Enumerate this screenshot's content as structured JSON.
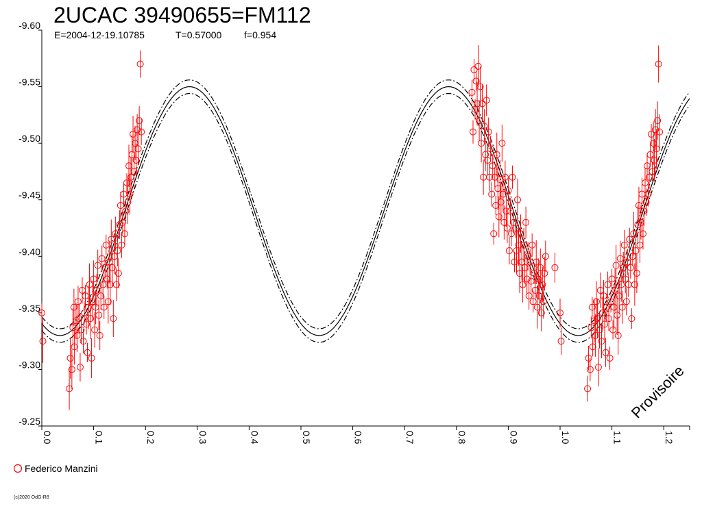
{
  "chart_data": {
    "type": "scatter",
    "title": "2UCAC 39490655=FM112",
    "subtitle": {
      "epoch": "E=2004-12-19.10785",
      "period": "T=0.57000",
      "fill": "f=0.954"
    },
    "watermark": "Provisoire",
    "credit": "(c)2020 OdG-R8",
    "xlim": [
      0.0,
      1.25
    ],
    "ylim": [
      -9.25,
      -9.6
    ],
    "x_ticks": [
      "0.0",
      "0.1",
      "0.2",
      "0.3",
      "0.4",
      "0.5",
      "0.6",
      "0.7",
      "0.8",
      "0.9",
      "1.0",
      "1.1",
      "1.2"
    ],
    "y_ticks": [
      "-9.60",
      "-9.55",
      "-9.50",
      "-9.45",
      "-9.40",
      "-9.35",
      "-9.30",
      "-9.25"
    ],
    "colors": {
      "points": "#ff0000",
      "model": "#000000"
    },
    "series": [
      {
        "name": "Federico Manzini",
        "marker": "open-circle",
        "points": [
          [
            0.0,
            -9.35
          ],
          [
            0.002,
            -9.325
          ],
          [
            0.053,
            -9.283
          ],
          [
            0.055,
            -9.31
          ],
          [
            0.058,
            -9.3
          ],
          [
            0.06,
            -9.337
          ],
          [
            0.062,
            -9.355
          ],
          [
            0.063,
            -9.32
          ],
          [
            0.066,
            -9.343
          ],
          [
            0.068,
            -9.33
          ],
          [
            0.07,
            -9.36
          ],
          [
            0.072,
            -9.345
          ],
          [
            0.074,
            -9.302
          ],
          [
            0.076,
            -9.335
          ],
          [
            0.078,
            -9.37
          ],
          [
            0.08,
            -9.325
          ],
          [
            0.082,
            -9.35
          ],
          [
            0.084,
            -9.365
          ],
          [
            0.086,
            -9.34
          ],
          [
            0.088,
            -9.315
          ],
          [
            0.09,
            -9.355
          ],
          [
            0.092,
            -9.375
          ],
          [
            0.094,
            -9.345
          ],
          [
            0.096,
            -9.31
          ],
          [
            0.098,
            -9.36
          ],
          [
            0.1,
            -9.38
          ],
          [
            0.102,
            -9.335
          ],
          [
            0.104,
            -9.355
          ],
          [
            0.106,
            -9.37
          ],
          [
            0.108,
            -9.392
          ],
          [
            0.11,
            -9.348
          ],
          [
            0.112,
            -9.33
          ],
          [
            0.114,
            -9.365
          ],
          [
            0.116,
            -9.398
          ],
          [
            0.118,
            -9.375
          ],
          [
            0.12,
            -9.355
          ],
          [
            0.122,
            -9.39
          ],
          [
            0.124,
            -9.41
          ],
          [
            0.126,
            -9.38
          ],
          [
            0.128,
            -9.36
          ],
          [
            0.13,
            -9.395
          ],
          [
            0.132,
            -9.375
          ],
          [
            0.134,
            -9.415
          ],
          [
            0.136,
            -9.39
          ],
          [
            0.138,
            -9.345
          ],
          [
            0.14,
            -9.4
          ],
          [
            0.142,
            -9.42
          ],
          [
            0.144,
            -9.375
          ],
          [
            0.146,
            -9.405
          ],
          [
            0.148,
            -9.385
          ],
          [
            0.15,
            -9.428
          ],
          [
            0.152,
            -9.445
          ],
          [
            0.154,
            -9.41
          ],
          [
            0.156,
            -9.43
          ],
          [
            0.158,
            -9.455
          ],
          [
            0.16,
            -9.42
          ],
          [
            0.162,
            -9.44
          ],
          [
            0.164,
            -9.465
          ],
          [
            0.166,
            -9.448
          ],
          [
            0.168,
            -9.48
          ],
          [
            0.17,
            -9.455
          ],
          [
            0.172,
            -9.47
          ],
          [
            0.174,
            -9.49
          ],
          [
            0.176,
            -9.508
          ],
          [
            0.178,
            -9.475
          ],
          [
            0.18,
            -9.5
          ],
          [
            0.182,
            -9.485
          ],
          [
            0.184,
            -9.512
          ],
          [
            0.186,
            -9.495
          ],
          [
            0.188,
            -9.52
          ],
          [
            0.19,
            -9.57
          ],
          [
            0.192,
            -9.51
          ],
          [
            0.83,
            -9.545
          ],
          [
            0.832,
            -9.51
          ],
          [
            0.834,
            -9.565
          ],
          [
            0.836,
            -9.53
          ],
          [
            0.838,
            -9.555
          ],
          [
            0.84,
            -9.535
          ],
          [
            0.842,
            -9.568
          ],
          [
            0.844,
            -9.52
          ],
          [
            0.846,
            -9.55
          ],
          [
            0.848,
            -9.5
          ],
          [
            0.85,
            -9.535
          ],
          [
            0.852,
            -9.47
          ],
          [
            0.854,
            -9.515
          ],
          [
            0.856,
            -9.49
          ],
          [
            0.858,
            -9.538
          ],
          [
            0.86,
            -9.485
          ],
          [
            0.862,
            -9.51
          ],
          [
            0.864,
            -9.47
          ],
          [
            0.866,
            -9.495
          ],
          [
            0.868,
            -9.455
          ],
          [
            0.87,
            -9.48
          ],
          [
            0.872,
            -9.42
          ],
          [
            0.874,
            -9.47
          ],
          [
            0.876,
            -9.445
          ],
          [
            0.878,
            -9.49
          ],
          [
            0.88,
            -9.46
          ],
          [
            0.882,
            -9.435
          ],
          [
            0.884,
            -9.468
          ],
          [
            0.886,
            -9.448
          ],
          [
            0.888,
            -9.5
          ],
          [
            0.89,
            -9.455
          ],
          [
            0.892,
            -9.43
          ],
          [
            0.894,
            -9.47
          ],
          [
            0.896,
            -9.44
          ],
          [
            0.898,
            -9.425
          ],
          [
            0.9,
            -9.458
          ],
          [
            0.902,
            -9.405
          ],
          [
            0.904,
            -9.44
          ],
          [
            0.906,
            -9.42
          ],
          [
            0.908,
            -9.47
          ],
          [
            0.91,
            -9.43
          ],
          [
            0.912,
            -9.395
          ],
          [
            0.914,
            -9.425
          ],
          [
            0.916,
            -9.405
          ],
          [
            0.918,
            -9.45
          ],
          [
            0.92,
            -9.41
          ],
          [
            0.922,
            -9.385
          ],
          [
            0.924,
            -9.42
          ],
          [
            0.926,
            -9.395
          ],
          [
            0.928,
            -9.375
          ],
          [
            0.93,
            -9.41
          ],
          [
            0.932,
            -9.39
          ],
          [
            0.934,
            -9.43
          ],
          [
            0.936,
            -9.38
          ],
          [
            0.938,
            -9.4
          ],
          [
            0.94,
            -9.365
          ],
          [
            0.942,
            -9.395
          ],
          [
            0.944,
            -9.378
          ],
          [
            0.946,
            -9.41
          ],
          [
            0.948,
            -9.36
          ],
          [
            0.95,
            -9.385
          ],
          [
            0.952,
            -9.37
          ],
          [
            0.954,
            -9.395
          ],
          [
            0.956,
            -9.355
          ],
          [
            0.958,
            -9.38
          ],
          [
            0.96,
            -9.365
          ],
          [
            0.962,
            -9.39
          ],
          [
            0.964,
            -9.35
          ],
          [
            0.966,
            -9.375
          ],
          [
            0.968,
            -9.36
          ],
          [
            0.97,
            -9.385
          ],
          [
            0.972,
            -9.4
          ],
          [
            0.99,
            -9.39
          ],
          [
            1.0,
            -9.35
          ],
          [
            1.002,
            -9.325
          ],
          [
            1.053,
            -9.283
          ],
          [
            1.055,
            -9.31
          ],
          [
            1.058,
            -9.3
          ],
          [
            1.06,
            -9.337
          ],
          [
            1.062,
            -9.355
          ],
          [
            1.063,
            -9.32
          ],
          [
            1.066,
            -9.343
          ],
          [
            1.068,
            -9.33
          ],
          [
            1.07,
            -9.36
          ],
          [
            1.072,
            -9.345
          ],
          [
            1.074,
            -9.302
          ],
          [
            1.076,
            -9.335
          ],
          [
            1.078,
            -9.37
          ],
          [
            1.08,
            -9.325
          ],
          [
            1.082,
            -9.35
          ],
          [
            1.084,
            -9.365
          ],
          [
            1.086,
            -9.34
          ],
          [
            1.088,
            -9.315
          ],
          [
            1.09,
            -9.355
          ],
          [
            1.092,
            -9.375
          ],
          [
            1.094,
            -9.345
          ],
          [
            1.096,
            -9.31
          ],
          [
            1.098,
            -9.36
          ],
          [
            1.1,
            -9.38
          ],
          [
            1.102,
            -9.335
          ],
          [
            1.104,
            -9.355
          ],
          [
            1.106,
            -9.37
          ],
          [
            1.108,
            -9.392
          ],
          [
            1.11,
            -9.348
          ],
          [
            1.112,
            -9.33
          ],
          [
            1.114,
            -9.365
          ],
          [
            1.116,
            -9.398
          ],
          [
            1.118,
            -9.375
          ],
          [
            1.12,
            -9.355
          ],
          [
            1.122,
            -9.39
          ],
          [
            1.124,
            -9.41
          ],
          [
            1.126,
            -9.38
          ],
          [
            1.128,
            -9.36
          ],
          [
            1.13,
            -9.395
          ],
          [
            1.132,
            -9.375
          ],
          [
            1.134,
            -9.415
          ],
          [
            1.136,
            -9.39
          ],
          [
            1.138,
            -9.345
          ],
          [
            1.14,
            -9.4
          ],
          [
            1.142,
            -9.42
          ],
          [
            1.144,
            -9.375
          ],
          [
            1.146,
            -9.405
          ],
          [
            1.148,
            -9.385
          ],
          [
            1.15,
            -9.428
          ],
          [
            1.152,
            -9.445
          ],
          [
            1.154,
            -9.41
          ],
          [
            1.156,
            -9.43
          ],
          [
            1.158,
            -9.455
          ],
          [
            1.16,
            -9.42
          ],
          [
            1.162,
            -9.44
          ],
          [
            1.164,
            -9.465
          ],
          [
            1.166,
            -9.448
          ],
          [
            1.168,
            -9.48
          ],
          [
            1.17,
            -9.455
          ],
          [
            1.172,
            -9.47
          ],
          [
            1.174,
            -9.49
          ],
          [
            1.176,
            -9.508
          ],
          [
            1.178,
            -9.475
          ],
          [
            1.18,
            -9.5
          ],
          [
            1.182,
            -9.485
          ],
          [
            1.184,
            -9.512
          ],
          [
            1.186,
            -9.495
          ],
          [
            1.188,
            -9.52
          ],
          [
            1.19,
            -9.57
          ],
          [
            1.192,
            -9.51
          ]
        ]
      }
    ],
    "model": {
      "mean": -9.44,
      "amplitude": 0.11,
      "cycle": 0.5,
      "phase_max": 0.285,
      "band": 0.006
    }
  }
}
